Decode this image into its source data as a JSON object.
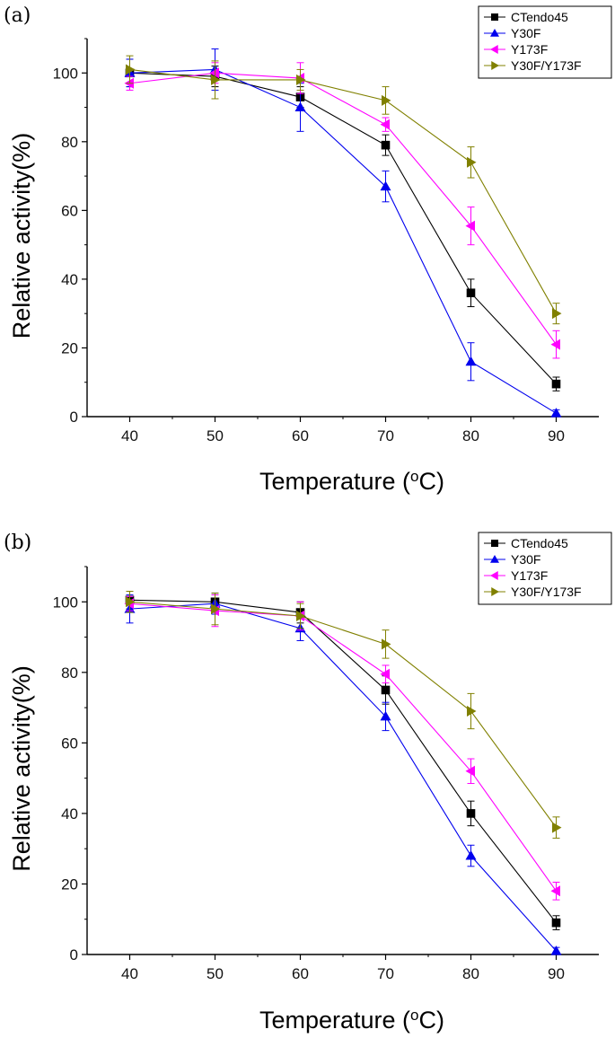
{
  "chart_data": [
    {
      "type": "line",
      "panel_label": "(a)",
      "xlabel": "Temperature (",
      "xlabel_sup": "o",
      "xlabel_suffix": "C)",
      "ylabel": "Relative activity(%)",
      "x": [
        40,
        50,
        60,
        70,
        80,
        90
      ],
      "xticks": [
        40,
        50,
        60,
        70,
        80,
        90
      ],
      "yticks": [
        0,
        20,
        40,
        60,
        80,
        100
      ],
      "xlim": [
        35,
        95
      ],
      "ylim": [
        0,
        110
      ],
      "legend_position": "top-right",
      "series": [
        {
          "name": "CTendo45",
          "color": "#000000",
          "marker": "square",
          "values": [
            100,
            99,
            93,
            79,
            36,
            9.5
          ],
          "errors": [
            4,
            3,
            3,
            3,
            4,
            2
          ]
        },
        {
          "name": "Y30F",
          "color": "#0000ee",
          "marker": "triangle-up",
          "values": [
            100,
            101,
            90,
            67,
            16,
            1
          ],
          "errors": [
            4,
            6,
            7,
            4.5,
            5.5,
            1
          ]
        },
        {
          "name": "Y173F",
          "color": "#ff00ff",
          "marker": "triangle-left",
          "values": [
            97,
            100,
            98.5,
            85,
            55.5,
            21
          ],
          "errors": [
            2,
            3,
            4.5,
            2,
            5.5,
            4
          ]
        },
        {
          "name": "Y30F/Y173F",
          "color": "#808000",
          "marker": "triangle-right",
          "values": [
            101,
            98,
            98,
            92,
            74,
            30
          ],
          "errors": [
            4,
            5.5,
            3,
            4,
            4.5,
            3
          ]
        }
      ]
    },
    {
      "type": "line",
      "panel_label": "(b)",
      "xlabel": "Temperature (",
      "xlabel_sup": "o",
      "xlabel_suffix": "C)",
      "ylabel": "Relative activity(%)",
      "x": [
        40,
        50,
        60,
        70,
        80,
        90
      ],
      "xticks": [
        40,
        50,
        60,
        70,
        80,
        90
      ],
      "yticks": [
        0,
        20,
        40,
        60,
        80,
        100
      ],
      "xlim": [
        35,
        95
      ],
      "ylim": [
        0,
        110
      ],
      "legend_position": "top-right",
      "series": [
        {
          "name": "CTendo45",
          "color": "#000000",
          "marker": "square",
          "values": [
            100.5,
            100,
            97,
            75,
            40,
            9
          ],
          "errors": [
            2.5,
            2,
            3,
            4,
            3.5,
            2
          ]
        },
        {
          "name": "Y30F",
          "color": "#0000ee",
          "marker": "triangle-up",
          "values": [
            98,
            99.5,
            92.5,
            67.5,
            28,
            1
          ],
          "errors": [
            4,
            3,
            3.5,
            4,
            3,
            1
          ]
        },
        {
          "name": "Y173F",
          "color": "#ff00ff",
          "marker": "triangle-left",
          "values": [
            99.5,
            97.5,
            96,
            79.5,
            52,
            18
          ],
          "errors": [
            2,
            4.5,
            4,
            2.5,
            3.5,
            2.5
          ]
        },
        {
          "name": "Y30F/Y173F",
          "color": "#808000",
          "marker": "triangle-right",
          "values": [
            100,
            98,
            96,
            88,
            69,
            36
          ],
          "errors": [
            3,
            4.5,
            3.5,
            4,
            5,
            3
          ]
        }
      ]
    }
  ]
}
